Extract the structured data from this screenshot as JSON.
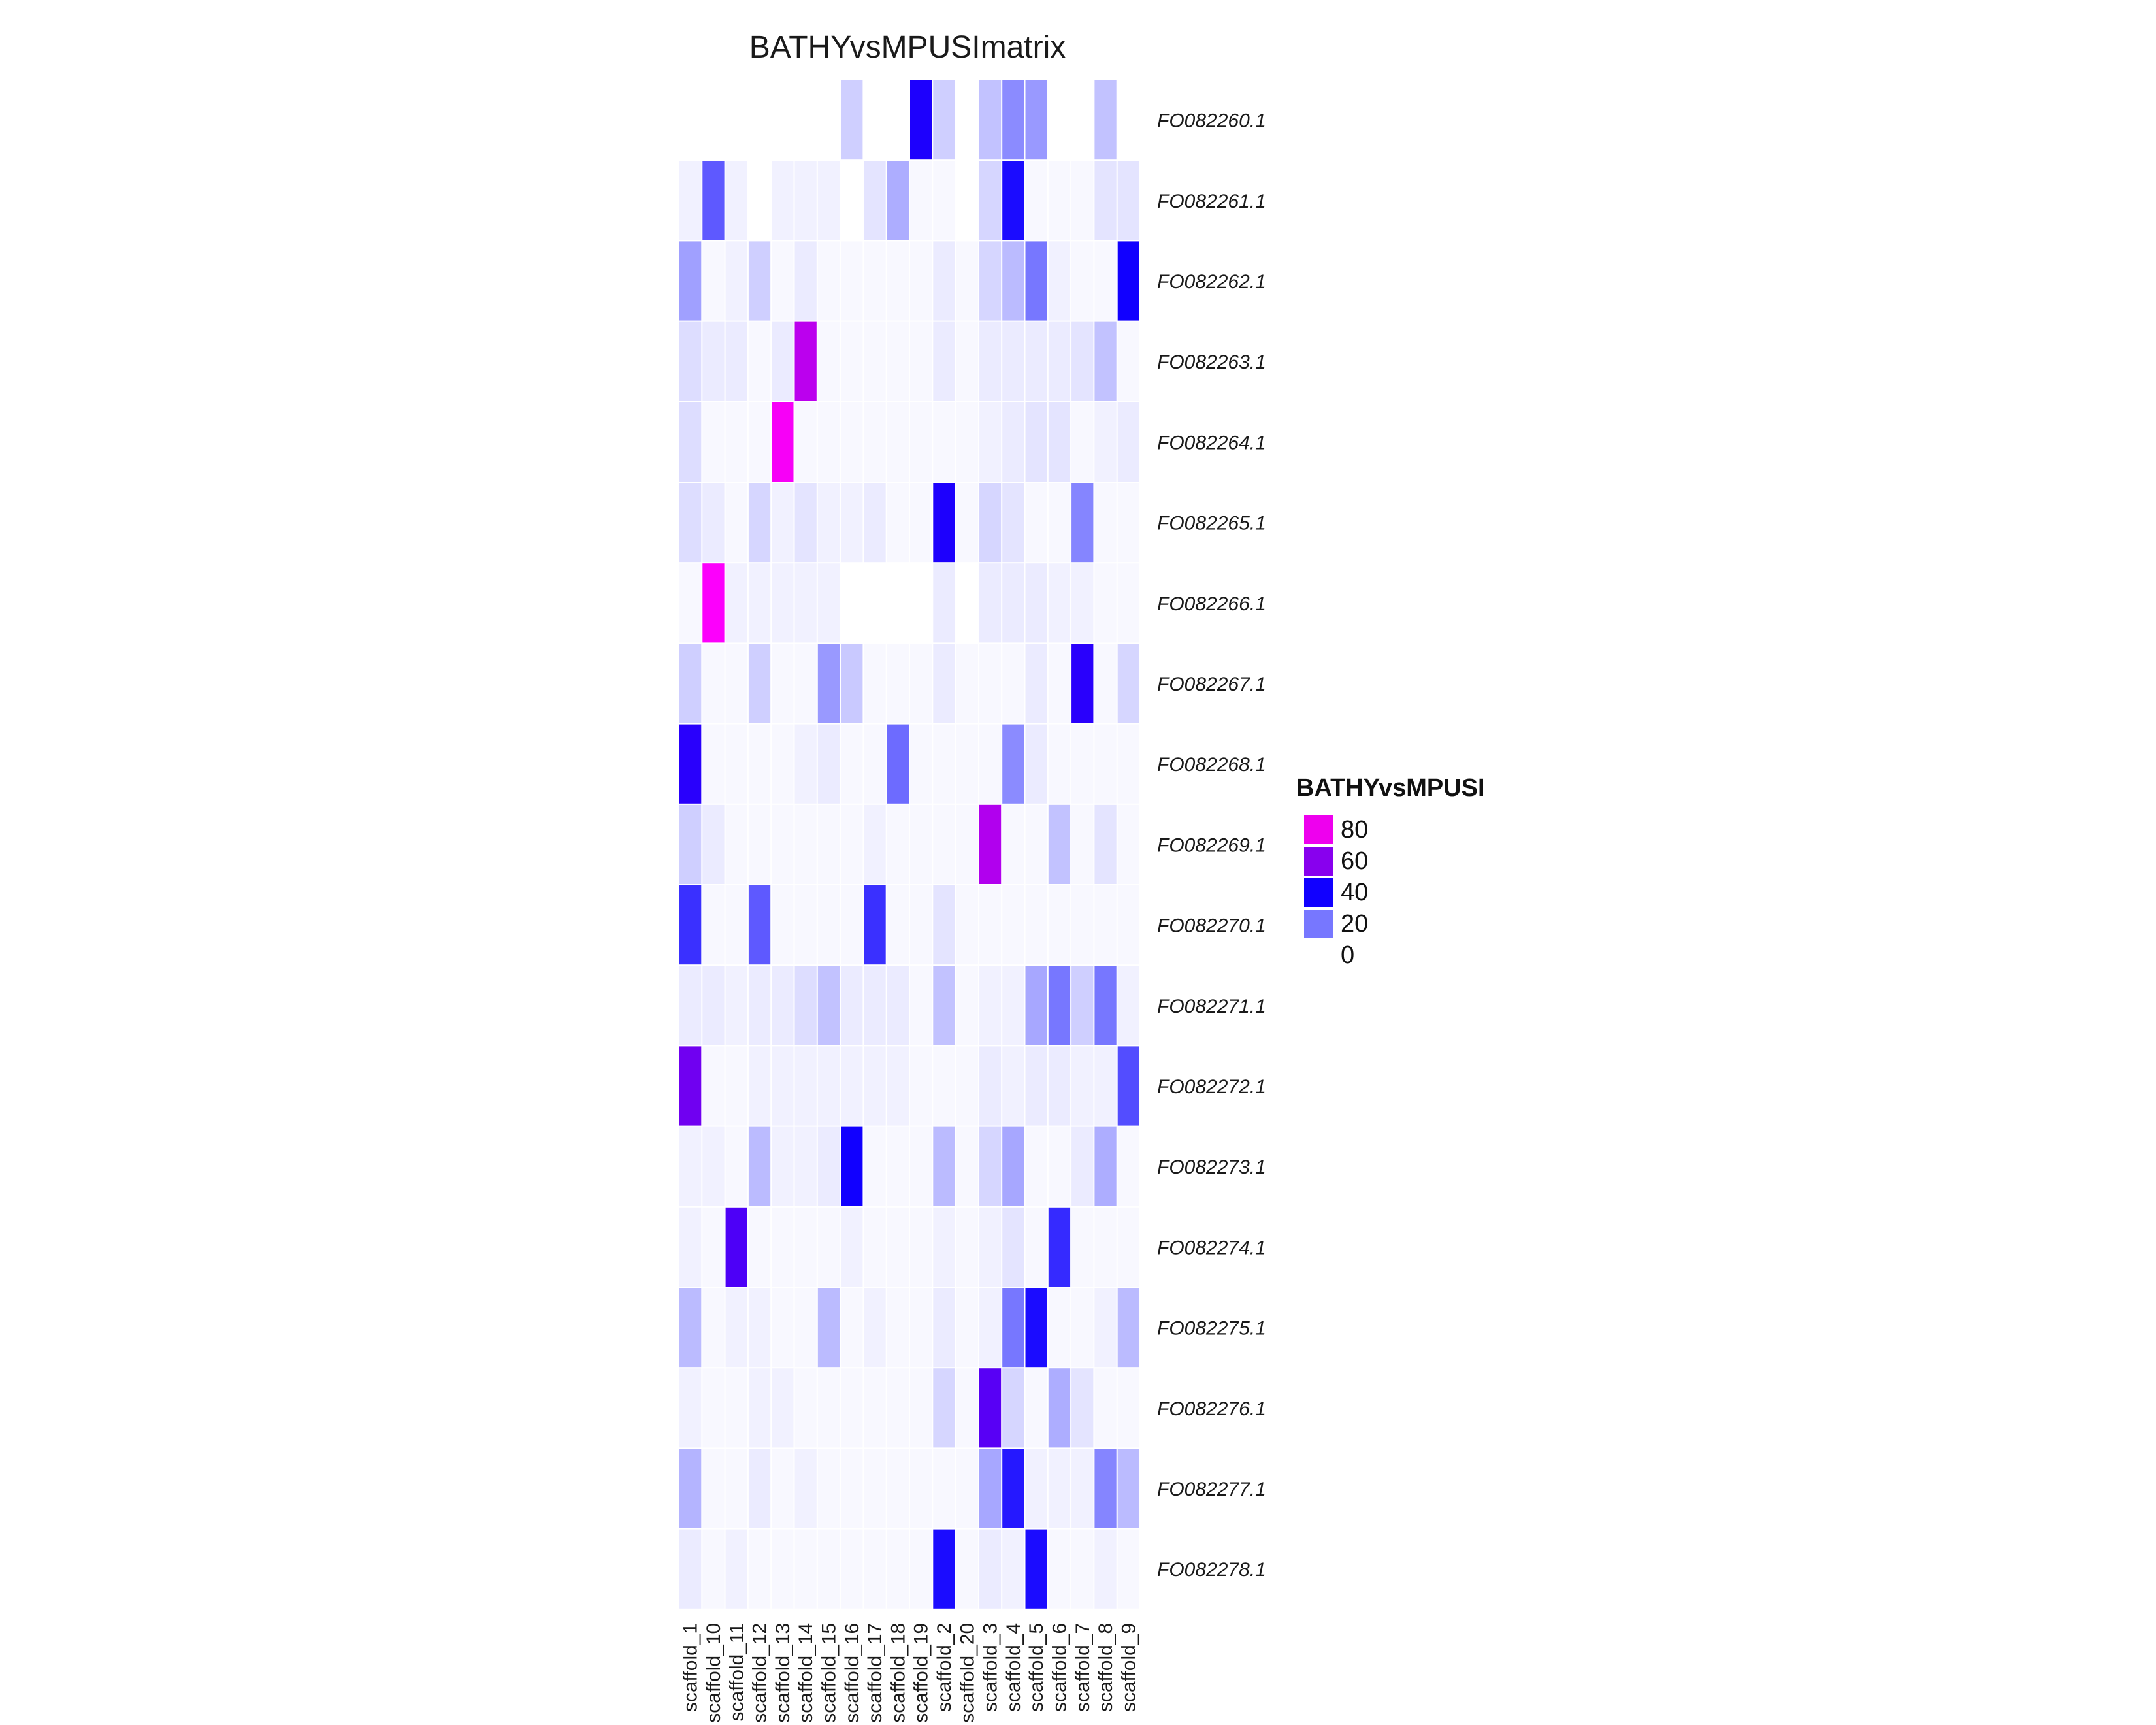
{
  "chart_data": {
    "type": "heatmap",
    "title": "BATHYvsMPUSImatrix",
    "legend": {
      "title": "BATHYvsMPUSI",
      "ticks": [
        80,
        60,
        40,
        20,
        0
      ],
      "placement": "right"
    },
    "color_scale": {
      "min": 0,
      "max": 90,
      "stops": [
        {
          "value": 0,
          "color": "#ffffff"
        },
        {
          "value": 20,
          "color": "#7777ff"
        },
        {
          "value": 40,
          "color": "#1100ff"
        },
        {
          "value": 60,
          "color": "#8800ee"
        },
        {
          "value": 80,
          "color": "#ee00ee"
        },
        {
          "value": 90,
          "color": "#ff00ff"
        }
      ],
      "na_color": "#ffffff"
    },
    "columns": [
      "scaffold_1",
      "scaffold_10",
      "scaffold_11",
      "scaffold_12",
      "scaffold_13",
      "scaffold_14",
      "scaffold_15",
      "scaffold_16",
      "scaffold_17",
      "scaffold_18",
      "scaffold_19",
      "scaffold_2",
      "scaffold_20",
      "scaffold_3",
      "scaffold_4",
      "scaffold_5",
      "scaffold_6",
      "scaffold_7",
      "scaffold_8",
      "scaffold_9"
    ],
    "rows": [
      "FO082260.1",
      "FO082261.1",
      "FO082262.1",
      "FO082263.1",
      "FO082264.1",
      "FO082265.1",
      "FO082266.1",
      "FO082267.1",
      "FO082268.1",
      "FO082269.1",
      "FO082270.1",
      "FO082271.1",
      "FO082272.1",
      "FO082273.1",
      "FO082274.1",
      "FO082275.1",
      "FO082276.1",
      "FO082277.1",
      "FO082278.1"
    ],
    "values": [
      [
        null,
        null,
        null,
        null,
        null,
        null,
        null,
        7,
        null,
        null,
        42,
        7,
        null,
        9,
        17,
        15,
        null,
        null,
        9,
        null
      ],
      [
        2,
        25,
        2,
        null,
        2,
        2,
        2,
        null,
        4,
        12,
        1,
        1,
        null,
        6,
        38,
        1,
        1,
        1,
        4,
        4
      ],
      [
        14,
        1,
        2,
        7,
        1,
        3,
        1,
        1,
        1,
        1,
        1,
        3,
        1,
        6,
        10,
        20,
        2,
        1,
        1,
        40
      ],
      [
        5,
        3,
        3,
        1,
        3,
        70,
        1,
        1,
        1,
        1,
        1,
        3,
        1,
        3,
        3,
        3,
        3,
        4,
        9,
        1
      ],
      [
        5,
        1,
        1,
        1,
        85,
        1,
        1,
        1,
        1,
        1,
        1,
        1,
        1,
        2,
        3,
        4,
        4,
        1,
        2,
        3
      ],
      [
        5,
        3,
        1,
        6,
        2,
        4,
        2,
        2,
        3,
        1,
        1,
        42,
        1,
        6,
        4,
        1,
        1,
        18,
        1,
        1
      ],
      [
        1,
        88,
        2,
        2,
        2,
        2,
        2,
        null,
        null,
        null,
        null,
        3,
        null,
        3,
        3,
        3,
        2,
        2,
        1,
        1
      ],
      [
        7,
        1,
        1,
        7,
        1,
        1,
        15,
        8,
        1,
        1,
        1,
        3,
        1,
        1,
        1,
        3,
        1,
        44,
        1,
        6
      ],
      [
        44,
        1,
        1,
        1,
        1,
        2,
        3,
        1,
        1,
        22,
        1,
        1,
        1,
        1,
        17,
        3,
        1,
        1,
        1,
        1
      ],
      [
        7,
        3,
        1,
        1,
        1,
        1,
        1,
        1,
        2,
        1,
        1,
        1,
        1,
        68,
        1,
        1,
        9,
        1,
        4,
        1
      ],
      [
        32,
        1,
        1,
        25,
        1,
        1,
        1,
        1,
        32,
        1,
        1,
        4,
        1,
        1,
        1,
        1,
        1,
        1,
        1,
        1
      ],
      [
        3,
        3,
        2,
        3,
        3,
        5,
        9,
        3,
        3,
        3,
        1,
        9,
        1,
        2,
        2,
        13,
        20,
        7,
        20,
        2
      ],
      [
        56,
        1,
        1,
        2,
        2,
        2,
        2,
        2,
        2,
        2,
        1,
        1,
        1,
        3,
        2,
        3,
        3,
        2,
        2,
        27
      ],
      [
        2,
        2,
        1,
        10,
        2,
        2,
        3,
        40,
        1,
        1,
        1,
        10,
        1,
        6,
        13,
        1,
        1,
        3,
        12,
        1
      ],
      [
        2,
        1,
        50,
        1,
        1,
        1,
        1,
        2,
        1,
        1,
        1,
        2,
        1,
        2,
        4,
        1,
        33,
        1,
        1,
        1
      ],
      [
        10,
        1,
        2,
        2,
        1,
        1,
        10,
        1,
        2,
        1,
        1,
        3,
        1,
        2,
        20,
        38,
        1,
        1,
        2,
        10
      ],
      [
        2,
        1,
        1,
        2,
        2,
        1,
        1,
        1,
        1,
        1,
        1,
        6,
        1,
        52,
        6,
        1,
        12,
        4,
        1,
        1
      ],
      [
        11,
        1,
        1,
        3,
        1,
        2,
        1,
        1,
        1,
        1,
        1,
        1,
        1,
        13,
        36,
        2,
        2,
        2,
        18,
        10
      ],
      [
        3,
        1,
        2,
        1,
        1,
        1,
        1,
        1,
        1,
        1,
        1,
        38,
        1,
        3,
        2,
        38,
        1,
        1,
        2,
        1
      ]
    ]
  }
}
